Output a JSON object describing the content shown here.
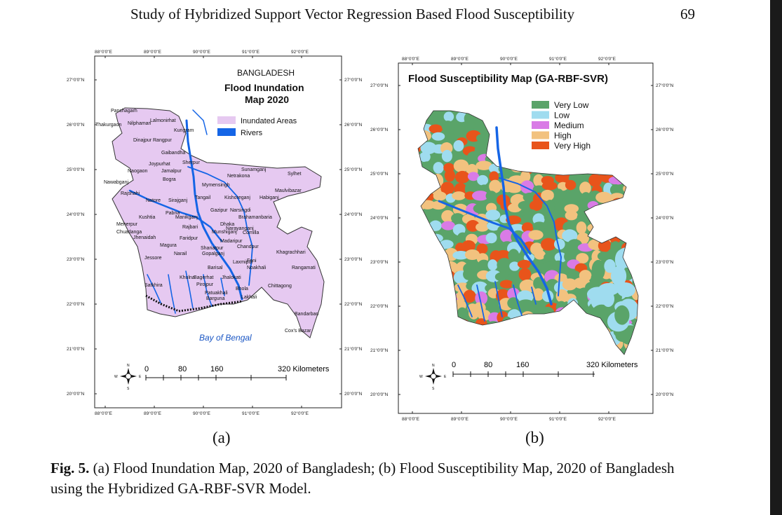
{
  "header": {
    "running_title": "Study of Hybridized Support Vector Regression Based Flood Susceptibility",
    "page_number": "69"
  },
  "panel_a": {
    "country": "BANGLADESH",
    "title_line1": "Flood Inundation",
    "title_line2": "Map 2020",
    "legend": [
      {
        "label": "Inundated Areas",
        "color": "#e6c9f1"
      },
      {
        "label": "Rivers",
        "color": "#1565e6"
      }
    ],
    "lon_ticks": [
      "88°0'0\"E",
      "89°0'0\"E",
      "90°0'0\"E",
      "91°0'0\"E",
      "92°0'0\"E"
    ],
    "lat_ticks": [
      "27°0'0\"N",
      "26°0'0\"N",
      "25°0'0\"N",
      "24°0'0\"N",
      "23°0'0\"N",
      "22°0'0\"N",
      "21°0'0\"N",
      "20°0'0\"N"
    ],
    "sea_label": "Bay of Bengal",
    "scale_labels": [
      "0",
      "80",
      "160",
      "320 Kilometers"
    ],
    "places": [
      "Panchagarh",
      "Thakurgaon",
      "Nilphamari",
      "Lalmonirhat",
      "Kurigram",
      "Dinajpur",
      "Rangpur",
      "Gaibandha",
      "Joypurhat",
      "Sherpur",
      "Naogaon",
      "Jamalpur",
      "Bogra",
      "Sunamganj",
      "Sylhet",
      "Netrakona",
      "Nawabganj",
      "Mymensingh",
      "Rajshahi",
      "Maulvibazar",
      "Natore",
      "Sirajganj",
      "Tangail",
      "Kishoreganj",
      "Habiganj",
      "Pabna",
      "Gazipur",
      "Narsingdi",
      "Kushtia",
      "Manikganj",
      "Brahamanbaria",
      "Meherpur",
      "Dhaka",
      "Narayanganj",
      "Rajbari",
      "Chuadanga",
      "Munshiganj",
      "Comilla",
      "Jhenaidah",
      "Faridpur",
      "Madaripur",
      "Magura",
      "Shariatpur",
      "Chandpur",
      "Narail",
      "Gopalganj",
      "Khagrachhari",
      "Jessore",
      "Feni",
      "Laxmipur",
      "Noakhali",
      "Barisal",
      "Rangamati",
      "Khulna",
      "Bagerhat",
      "Jhalokati",
      "Satkhira",
      "Pirojpur",
      "Chittagong",
      "Patuakhali",
      "Bhola",
      "Barguna",
      "Lakhali",
      "Bandarban",
      "Cox's Bazar"
    ]
  },
  "panel_b": {
    "title": "Flood Susceptibility Map (GA-RBF-SVR)",
    "legend": [
      {
        "label": "Very Low",
        "color": "#5aa469"
      },
      {
        "label": "Low",
        "color": "#9fdcef"
      },
      {
        "label": "Medium",
        "color": "#d97be6"
      },
      {
        "label": "High",
        "color": "#f2c27f"
      },
      {
        "label": "Very High",
        "color": "#e8541b"
      }
    ],
    "lon_ticks": [
      "88°0'0\"E",
      "89°0'0\"E",
      "90°0'0\"E",
      "91°0'0\"E",
      "92°0'0\"E"
    ],
    "lat_ticks": [
      "27°0'0\"N",
      "26°0'0\"N",
      "25°0'0\"N",
      "24°0'0\"N",
      "23°0'0\"N",
      "22°0'0\"N",
      "21°0'0\"N",
      "20°0'0\"N"
    ],
    "scale_labels": [
      "0",
      "80",
      "160",
      "320 Kilometers"
    ]
  },
  "subfig_labels": {
    "a": "(a)",
    "b": "(b)"
  },
  "caption": {
    "label": "Fig. 5.",
    "text": " (a) Flood Inundation Map, 2020 of Bangladesh; (b) Flood Susceptibility Map, 2020 of Bangladesh using the Hybridized GA-RBF-SVR Model."
  },
  "compass": {
    "n": "N",
    "s": "S",
    "e": "E",
    "w": "W"
  }
}
